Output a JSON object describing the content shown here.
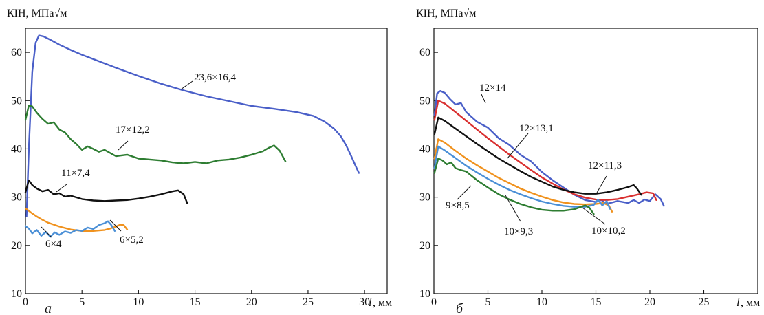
{
  "chart_data": [
    {
      "type": "line",
      "panel_label": "а",
      "ylabel": "КІН, МПа√м",
      "xlabel": "l",
      "xunit": ", мм",
      "xlim": [
        0,
        32
      ],
      "ylim": [
        10,
        65
      ],
      "xticks": [
        "0",
        "5",
        "10",
        "15",
        "20",
        "25",
        "30"
      ],
      "yticks": [
        "10",
        "20",
        "30",
        "40",
        "50",
        "60"
      ],
      "grid": false,
      "series": [
        {
          "name": "23,6×16,4",
          "color": "#4a5fc8",
          "x": [
            0.1,
            0.3,
            0.6,
            0.9,
            1.2,
            1.6,
            2.2,
            3,
            4,
            5,
            6,
            8,
            10,
            12,
            14,
            16,
            18,
            20,
            22,
            24,
            25.5,
            26.5,
            27.3,
            27.9,
            28.4,
            28.8,
            29.2,
            29.5
          ],
          "y": [
            26,
            40,
            56,
            62,
            63.5,
            63.3,
            62.6,
            61.6,
            60.5,
            59.5,
            58.6,
            56.8,
            55.1,
            53.5,
            52.1,
            50.9,
            49.9,
            48.9,
            48.3,
            47.6,
            46.8,
            45.6,
            44.2,
            42.6,
            40.6,
            38.6,
            36.5,
            35
          ]
        },
        {
          "name": "17×12,2",
          "color": "#2e7d32",
          "x": [
            0,
            0.3,
            0.6,
            1,
            1.5,
            2,
            2.5,
            3,
            3.5,
            4,
            4.5,
            5,
            5.5,
            6,
            6.5,
            7,
            8,
            9,
            10,
            11,
            12,
            13,
            14,
            15,
            16,
            17,
            18,
            19,
            20,
            21,
            21.5,
            22,
            22.5,
            23
          ],
          "y": [
            46,
            49,
            48.8,
            47.5,
            46.2,
            45.2,
            45.5,
            44,
            43.4,
            42,
            41,
            39.8,
            40.5,
            40,
            39.4,
            39.8,
            38.5,
            38.8,
            38,
            37.8,
            37.6,
            37.2,
            37,
            37.3,
            37,
            37.6,
            37.8,
            38.2,
            38.8,
            39.5,
            40.2,
            40.7,
            39.6,
            37.4
          ]
        },
        {
          "name": "11×7,4",
          "color": "#111111",
          "x": [
            0,
            0.3,
            0.6,
            1,
            1.5,
            2,
            2.5,
            3,
            3.5,
            4,
            5,
            6,
            7,
            8,
            9,
            10,
            11,
            12,
            13,
            13.5,
            14,
            14.3
          ],
          "y": [
            31,
            33.5,
            32.5,
            31.8,
            31.2,
            31.5,
            30.6,
            30.8,
            30.1,
            30.3,
            29.6,
            29.3,
            29.2,
            29.3,
            29.4,
            29.7,
            30.1,
            30.6,
            31.2,
            31.4,
            30.6,
            28.8
          ]
        },
        {
          "name": "6×5,2",
          "color": "#f0921e",
          "x": [
            0.05,
            0.5,
            1,
            1.5,
            2,
            3,
            4,
            5,
            6,
            7,
            7.5,
            8,
            8.4,
            8.7,
            9
          ],
          "y": [
            27.6,
            26.8,
            26,
            25.3,
            24.7,
            23.9,
            23.3,
            23,
            23,
            23.2,
            23.5,
            23.9,
            24.3,
            24.2,
            23.3
          ]
        },
        {
          "name": "6×4",
          "color": "#4a8fd6",
          "x": [
            0,
            0.3,
            0.6,
            1,
            1.4,
            1.8,
            2.2,
            2.6,
            3,
            3.5,
            4,
            4.5,
            5,
            5.5,
            6,
            6.5,
            7,
            7.3,
            7.6,
            7.9
          ],
          "y": [
            24,
            23.5,
            22.5,
            23.2,
            22,
            22.8,
            21.8,
            22.7,
            22.2,
            22.9,
            22.6,
            23.2,
            23,
            23.7,
            23.4,
            24.2,
            24.6,
            25,
            24.2,
            23
          ]
        }
      ],
      "annotations": [
        "23,6×16,4",
        "17×12,2",
        "11×7,4",
        "6×5,2",
        "6×4"
      ]
    },
    {
      "type": "line",
      "panel_label": "б",
      "ylabel": "КІН, МПа√м",
      "xlabel": "l",
      "xunit": ", мм",
      "xlim": [
        0,
        30
      ],
      "ylim": [
        10,
        65
      ],
      "xticks": [
        "0",
        "5",
        "10",
        "15",
        "20",
        "25"
      ],
      "yticks": [
        "10",
        "20",
        "30",
        "40",
        "50",
        "60"
      ],
      "grid": false,
      "series": [
        {
          "name": "12×14",
          "color": "#4a5fc8",
          "x": [
            0.05,
            0.3,
            0.6,
            1,
            1.5,
            2,
            2.5,
            3,
            4,
            5,
            6,
            7,
            8,
            9,
            10,
            11,
            12,
            13,
            14,
            15,
            15.5,
            16,
            17,
            18,
            18.5,
            19,
            19.5,
            20,
            20.5,
            21,
            21.3
          ],
          "y": [
            47,
            51.5,
            52,
            51.6,
            50.3,
            49.2,
            49.5,
            47.6,
            45.6,
            44.4,
            42.2,
            40.8,
            38.8,
            37.4,
            35.2,
            33.5,
            32,
            30.5,
            29.4,
            29,
            29.4,
            28.6,
            29.2,
            28.8,
            29.4,
            28.8,
            29.5,
            29.2,
            30.6,
            29.6,
            28.2
          ]
        },
        {
          "name": "12×13,1",
          "color": "#d93030",
          "x": [
            0.05,
            0.4,
            1,
            2,
            3,
            4,
            5,
            6,
            7,
            8,
            9,
            10,
            11,
            12,
            13,
            14,
            15,
            16,
            17,
            18,
            19,
            19.7,
            20.3,
            20.6
          ],
          "y": [
            46,
            50,
            49.4,
            47.6,
            45.8,
            44,
            42.2,
            40.5,
            38.8,
            37.2,
            35.6,
            34.1,
            32.8,
            31.6,
            30.6,
            29.9,
            29.5,
            29.4,
            29.6,
            30.1,
            30.6,
            31,
            30.8,
            29.4
          ]
        },
        {
          "name": "12×11,3",
          "color": "#111111",
          "x": [
            0.05,
            0.4,
            1,
            2,
            3,
            4,
            5,
            6,
            7,
            8,
            9,
            10,
            11,
            12,
            13,
            14,
            15,
            16,
            17,
            18,
            18.5,
            18.8,
            19.2
          ],
          "y": [
            43,
            46.5,
            45.8,
            44.2,
            42.6,
            41,
            39.5,
            38,
            36.7,
            35.4,
            34.2,
            33.2,
            32.2,
            31.5,
            31,
            30.7,
            30.7,
            31,
            31.5,
            32.1,
            32.5,
            31.8,
            30.5
          ]
        },
        {
          "name": "10×10,2",
          "color": "#f0921e",
          "x": [
            0.05,
            0.4,
            1,
            2,
            3,
            4,
            5,
            6,
            7,
            8,
            9,
            10,
            11,
            12,
            13,
            14,
            15,
            15.7,
            16.2,
            16.5
          ],
          "y": [
            38,
            42,
            41.3,
            39.6,
            38,
            36.6,
            35.3,
            34,
            32.9,
            31.8,
            30.9,
            30.1,
            29.4,
            28.9,
            28.6,
            28.5,
            28.6,
            28.8,
            28.3,
            27
          ]
        },
        {
          "name": "10×9,3",
          "color": "#4a8fd6",
          "x": [
            0.05,
            0.4,
            1,
            2,
            3,
            4,
            5,
            6,
            7,
            8,
            9,
            10,
            11,
            12,
            13,
            14,
            14.8,
            15.2,
            15.6,
            16,
            16.3
          ],
          "y": [
            36,
            40.5,
            39.7,
            38.1,
            36.5,
            35.1,
            33.8,
            32.6,
            31.5,
            30.6,
            29.8,
            29.1,
            28.6,
            28.2,
            28,
            28,
            28.4,
            29.5,
            28.3,
            29.2,
            27.6
          ]
        },
        {
          "name": "9×8,5",
          "color": "#2e7d32",
          "x": [
            0.05,
            0.4,
            0.8,
            1.2,
            1.6,
            2,
            2.5,
            3,
            4,
            5,
            6,
            7,
            8,
            9,
            10,
            11,
            12,
            13,
            13.5,
            14,
            14.4,
            14.8
          ],
          "y": [
            35,
            38,
            37.6,
            36.8,
            37.2,
            36,
            35.6,
            35.3,
            33.5,
            32,
            30.6,
            29.5,
            28.6,
            27.9,
            27.4,
            27.2,
            27.2,
            27.5,
            27.9,
            28.3,
            27.8,
            26.5
          ]
        }
      ],
      "annotations": [
        "12×14",
        "12×13,1",
        "12×11,3",
        "10×10,2",
        "10×9,3",
        "9×8,5"
      ]
    }
  ]
}
